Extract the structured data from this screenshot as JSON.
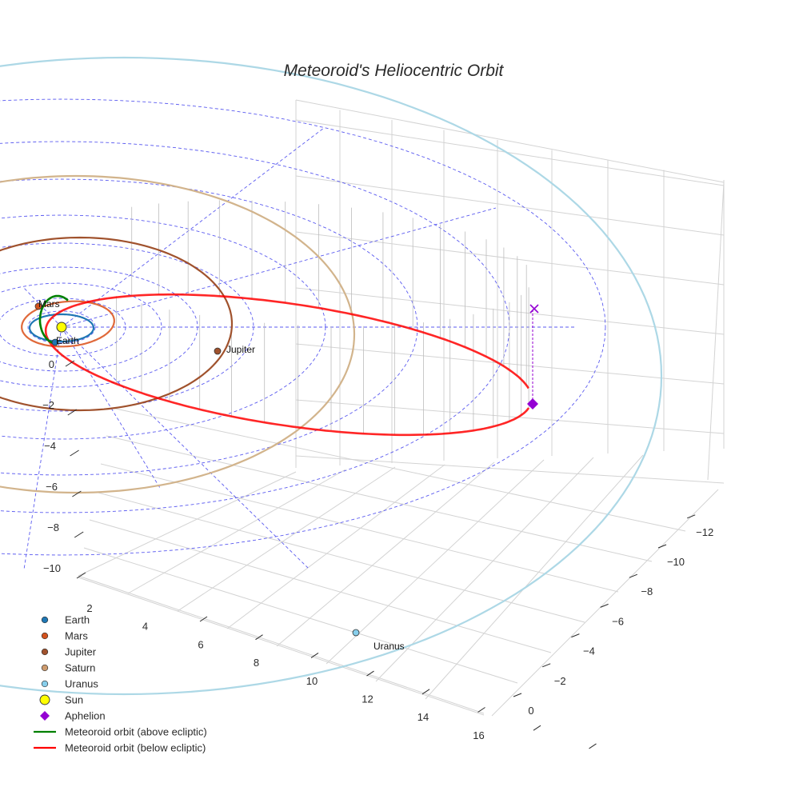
{
  "chart_data": {
    "type": "scatter",
    "title": "Meteoroid's Heliocentric Orbit",
    "projection": "3d",
    "axes": {
      "x": {
        "ticks": [
          "2",
          "4",
          "6",
          "8",
          "10",
          "12",
          "14",
          "16"
        ]
      },
      "y": {
        "ticks": [
          "0",
          "−2",
          "−4",
          "−6",
          "−8",
          "−10",
          "−12"
        ]
      },
      "z": {
        "ticks": [
          "0",
          "−2",
          "−4",
          "−6",
          "−8",
          "−10"
        ]
      }
    },
    "planets": [
      {
        "name": "Earth",
        "color": "#1f77b4",
        "orbit_color": "#1f77b4"
      },
      {
        "name": "Mars",
        "color": "#d2521e",
        "orbit_color": "#e0693a"
      },
      {
        "name": "Jupiter",
        "color": "#a0522d",
        "orbit_color": "#a0522d"
      },
      {
        "name": "Saturn",
        "color": "#cd9b6e",
        "orbit_color": "#d2b48c"
      },
      {
        "name": "Uranus",
        "color": "#87ceeb",
        "orbit_color": "#add8e6"
      }
    ],
    "point_labels": [
      "Mars",
      "Earth",
      "Jupiter",
      "Uranus"
    ],
    "sun": {
      "name": "Sun",
      "color": "#ffff00"
    },
    "aphelion": {
      "name": "Aphelion",
      "color": "#9400d3"
    },
    "meteoroid_orbit": {
      "above": {
        "name": "Meteoroid orbit (above ecliptic)",
        "color": "#008000"
      },
      "below": {
        "name": "Meteoroid orbit (below ecliptic)",
        "color": "#ff0000"
      }
    },
    "legend": [
      {
        "name": "Earth",
        "symbol": "circle",
        "color": "#1f77b4"
      },
      {
        "name": "Mars",
        "symbol": "circle",
        "color": "#d2521e"
      },
      {
        "name": "Jupiter",
        "symbol": "circle",
        "color": "#a0522d"
      },
      {
        "name": "Saturn",
        "symbol": "circle",
        "color": "#cd9b6e"
      },
      {
        "name": "Uranus",
        "symbol": "circle",
        "color": "#87ceeb"
      },
      {
        "name": "Sun",
        "symbol": "big-circle",
        "color": "#ffff00"
      },
      {
        "name": "Aphelion",
        "symbol": "diamond",
        "color": "#9400d3"
      },
      {
        "name": "Meteoroid orbit (above ecliptic)",
        "symbol": "line",
        "color": "#008000"
      },
      {
        "name": "Meteoroid orbit (below ecliptic)",
        "symbol": "line",
        "color": "#ff0000"
      }
    ],
    "legend_position": "bottom-left"
  }
}
